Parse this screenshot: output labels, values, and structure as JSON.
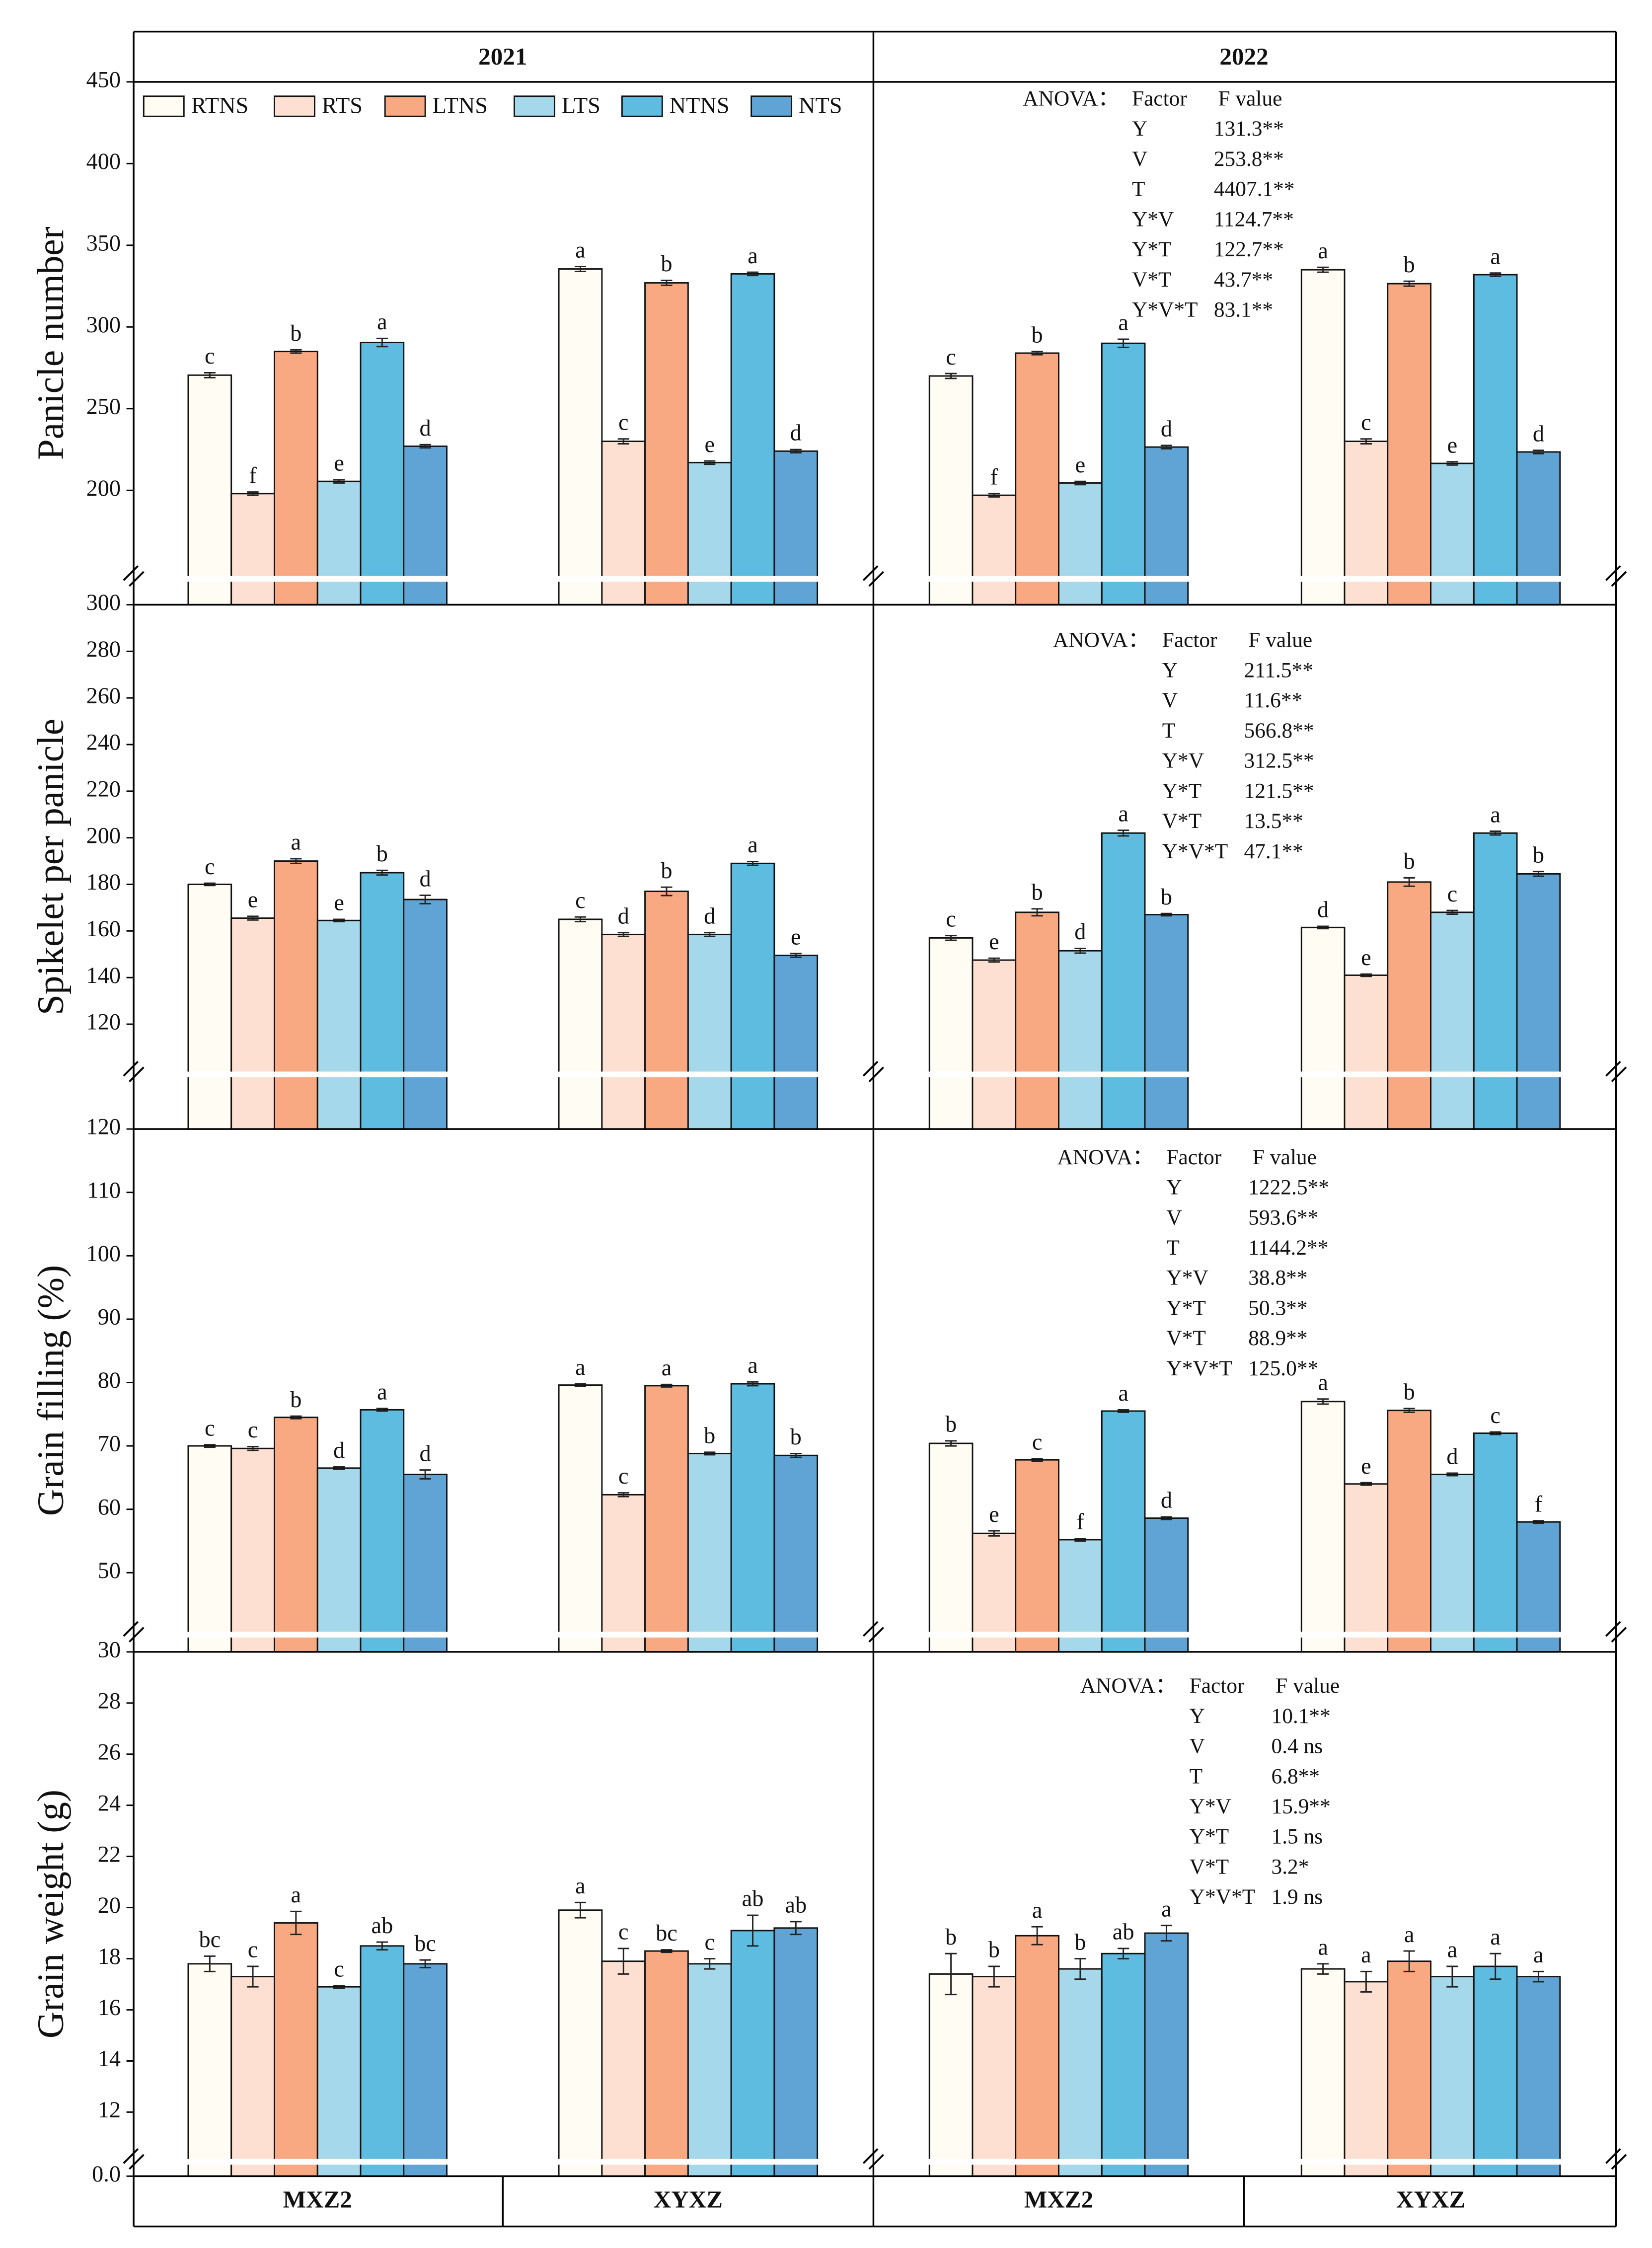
{
  "years": [
    "2021",
    "2022"
  ],
  "x_categories": [
    "MXZ2",
    "XYXZ",
    "MXZ2",
    "XYXZ"
  ],
  "chart_data": [
    {
      "type": "bar",
      "y_label": "Panicle number",
      "ylim": [
        130,
        450
      ],
      "yticks": [
        200,
        250,
        300,
        350,
        400,
        450
      ],
      "series": [
        {
          "name": "RTNS",
          "color": "#fffdf3",
          "values": [
            270.5,
            335.5,
            270,
            335
          ],
          "errors": [
            1.5,
            1.5,
            1.5,
            1.5
          ],
          "letters": [
            "c",
            "a",
            "c",
            "a"
          ]
        },
        {
          "name": "RTS",
          "color": "#fde0d2",
          "values": [
            198,
            230,
            197,
            230
          ],
          "errors": [
            1,
            1.5,
            1,
            1.5
          ],
          "letters": [
            "f",
            "c",
            "f",
            "c"
          ]
        },
        {
          "name": "LTNS",
          "color": "#f9a982",
          "values": [
            285,
            327,
            284,
            326.5
          ],
          "errors": [
            1,
            1.5,
            1,
            1.5
          ],
          "letters": [
            "b",
            "b",
            "b",
            "b"
          ]
        },
        {
          "name": "LTS",
          "color": "#a5d8ea",
          "values": [
            205.5,
            217,
            204.5,
            216.5
          ],
          "errors": [
            1,
            1,
            1,
            1
          ],
          "letters": [
            "e",
            "e",
            "e",
            "e"
          ]
        },
        {
          "name": "NTNS",
          "color": "#5ebce0",
          "values": [
            290.5,
            332.5,
            290,
            332
          ],
          "errors": [
            2.5,
            1,
            2.5,
            1
          ],
          "letters": [
            "a",
            "a",
            "a",
            "a"
          ]
        },
        {
          "name": "NTS",
          "color": "#5fa4d4",
          "values": [
            227,
            224,
            226.5,
            223.5
          ],
          "errors": [
            1,
            1,
            1,
            1
          ],
          "letters": [
            "d",
            "d",
            "d",
            "d"
          ]
        }
      ],
      "anova": {
        "label": "ANOVA：",
        "columns": [
          "Factor",
          "F value"
        ],
        "rows": [
          [
            "Y",
            "131.3**"
          ],
          [
            "V",
            "253.8**"
          ],
          [
            "T",
            "4407.1**"
          ],
          [
            "Y*V",
            "1124.7**"
          ],
          [
            "Y*T",
            "122.7**"
          ],
          [
            "V*T",
            "43.7**"
          ],
          [
            "Y*V*T",
            "83.1**"
          ]
        ]
      }
    },
    {
      "type": "bar",
      "y_label": "Spikelet per panicle",
      "ylim": [
        75,
        300
      ],
      "yticks": [
        120,
        140,
        160,
        180,
        200,
        220,
        240,
        260,
        280,
        300
      ],
      "series": [
        {
          "color": "#fffdf3",
          "values": [
            180,
            165,
            157,
            161.5
          ],
          "errors": [
            0.5,
            1,
            1,
            0.5
          ],
          "letters": [
            "c",
            "c",
            "c",
            "d"
          ]
        },
        {
          "color": "#fde0d2",
          "values": [
            165.5,
            158.5,
            147.5,
            141
          ],
          "errors": [
            0.8,
            0.8,
            0.8,
            0.5
          ],
          "letters": [
            "e",
            "d",
            "e",
            "e"
          ]
        },
        {
          "color": "#f9a982",
          "values": [
            190,
            177,
            168,
            181
          ],
          "errors": [
            1,
            1.8,
            1.5,
            1.8
          ],
          "letters": [
            "a",
            "b",
            "b",
            "b"
          ]
        },
        {
          "color": "#a5d8ea",
          "values": [
            164.5,
            158.5,
            151.5,
            168
          ],
          "errors": [
            0.5,
            0.8,
            1,
            0.8
          ],
          "letters": [
            "e",
            "d",
            "d",
            "c"
          ]
        },
        {
          "color": "#5ebce0",
          "values": [
            185,
            189,
            202,
            202
          ],
          "errors": [
            1,
            0.8,
            1.2,
            0.8
          ],
          "letters": [
            "b",
            "a",
            "a",
            "a"
          ]
        },
        {
          "color": "#5fa4d4",
          "values": [
            173.5,
            149.5,
            167,
            184.5
          ],
          "errors": [
            1.8,
            0.8,
            0.5,
            1
          ],
          "letters": [
            "d",
            "e",
            "b",
            "b"
          ]
        }
      ],
      "anova": {
        "label": "ANOVA：",
        "columns": [
          "Factor",
          "F value"
        ],
        "rows": [
          [
            "Y",
            "211.5**"
          ],
          [
            "V",
            "11.6**"
          ],
          [
            "T",
            "566.8**"
          ],
          [
            "Y*V",
            "312.5**"
          ],
          [
            "Y*T",
            "121.5**"
          ],
          [
            "V*T",
            "13.5**"
          ],
          [
            "Y*V*T",
            "47.1**"
          ]
        ]
      }
    },
    {
      "type": "bar",
      "y_label": "Grain filling (%)",
      "ylim": [
        37.5,
        120
      ],
      "yticks": [
        50,
        60,
        70,
        80,
        90,
        100,
        110,
        120
      ],
      "series": [
        {
          "color": "#fffdf3",
          "values": [
            70,
            79.6,
            70.4,
            77
          ],
          "errors": [
            0.2,
            0.2,
            0.4,
            0.4
          ],
          "letters": [
            "c",
            "a",
            "b",
            "a"
          ]
        },
        {
          "color": "#fde0d2",
          "values": [
            69.6,
            62.3,
            56.2,
            64
          ],
          "errors": [
            0.3,
            0.3,
            0.4,
            0.2
          ],
          "letters": [
            "c",
            "c",
            "e",
            "e"
          ]
        },
        {
          "color": "#f9a982",
          "values": [
            74.5,
            79.5,
            67.8,
            75.6
          ],
          "errors": [
            0.2,
            0.2,
            0.2,
            0.3
          ],
          "letters": [
            "b",
            "a",
            "c",
            "b"
          ]
        },
        {
          "color": "#a5d8ea",
          "values": [
            66.5,
            68.8,
            55.2,
            65.5
          ],
          "errors": [
            0.2,
            0.2,
            0.2,
            0.2
          ],
          "letters": [
            "d",
            "b",
            "f",
            "d"
          ]
        },
        {
          "color": "#5ebce0",
          "values": [
            75.7,
            79.8,
            75.5,
            72
          ],
          "errors": [
            0.2,
            0.3,
            0.2,
            0.2
          ],
          "letters": [
            "a",
            "a",
            "a",
            "c"
          ]
        },
        {
          "color": "#5fa4d4",
          "values": [
            65.5,
            68.5,
            58.6,
            58
          ],
          "errors": [
            0.7,
            0.3,
            0.2,
            0.2
          ],
          "letters": [
            "d",
            "b",
            "d",
            "f"
          ]
        }
      ],
      "anova": {
        "label": "ANOVA：",
        "columns": [
          "Factor",
          "F value"
        ],
        "rows": [
          [
            "Y",
            "1222.5**"
          ],
          [
            "V",
            "593.6**"
          ],
          [
            "T",
            "1144.2**"
          ],
          [
            "Y*V",
            "38.8**"
          ],
          [
            "Y*T",
            "50.3**"
          ],
          [
            "V*T",
            "88.9**"
          ],
          [
            "Y*V*T",
            "125.0**"
          ]
        ]
      }
    },
    {
      "type": "bar",
      "y_label": "Grain weight (g)",
      "ylim": [
        0,
        30
      ],
      "ybreak": 10,
      "yticks": [
        {
          "value": 0,
          "label": "0.0"
        },
        12,
        14,
        16,
        18,
        20,
        22,
        24,
        26,
        28,
        30
      ],
      "series": [
        {
          "color": "#fffdf3",
          "values": [
            17.8,
            19.9,
            17.4,
            17.6
          ],
          "errors": [
            0.3,
            0.3,
            0.8,
            0.2
          ],
          "letters": [
            "bc",
            "a",
            "b",
            "a"
          ]
        },
        {
          "color": "#fde0d2",
          "values": [
            17.3,
            17.9,
            17.3,
            17.1
          ],
          "errors": [
            0.4,
            0.5,
            0.4,
            0.4
          ],
          "letters": [
            "c",
            "c",
            "b",
            "a"
          ]
        },
        {
          "color": "#f9a982",
          "values": [
            19.4,
            18.3,
            18.9,
            17.9
          ],
          "errors": [
            0.45,
            0.05,
            0.35,
            0.4
          ],
          "letters": [
            "a",
            "bc",
            "a",
            "a"
          ]
        },
        {
          "color": "#a5d8ea",
          "values": [
            16.9,
            17.8,
            17.6,
            17.3
          ],
          "errors": [
            0.05,
            0.2,
            0.4,
            0.4
          ],
          "letters": [
            "c",
            "c",
            "b",
            "a"
          ]
        },
        {
          "color": "#5ebce0",
          "values": [
            18.5,
            19.1,
            18.2,
            17.7
          ],
          "errors": [
            0.15,
            0.6,
            0.2,
            0.5
          ],
          "letters": [
            "ab",
            "ab",
            "ab",
            "a"
          ]
        },
        {
          "color": "#5fa4d4",
          "values": [
            17.8,
            19.2,
            19,
            17.3
          ],
          "errors": [
            0.15,
            0.25,
            0.3,
            0.2
          ],
          "letters": [
            "bc",
            "ab",
            "a",
            "a"
          ]
        }
      ],
      "anova": {
        "label": "ANOVA：",
        "columns": [
          "Factor",
          "F value"
        ],
        "rows": [
          [
            "Y",
            "10.1**"
          ],
          [
            "V",
            "0.4 ns"
          ],
          [
            "T",
            "6.8**"
          ],
          [
            "Y*V",
            "15.9**"
          ],
          [
            "Y*T",
            "1.5 ns"
          ],
          [
            "V*T",
            "3.2*"
          ],
          [
            "Y*V*T",
            "1.9 ns"
          ]
        ]
      }
    }
  ]
}
